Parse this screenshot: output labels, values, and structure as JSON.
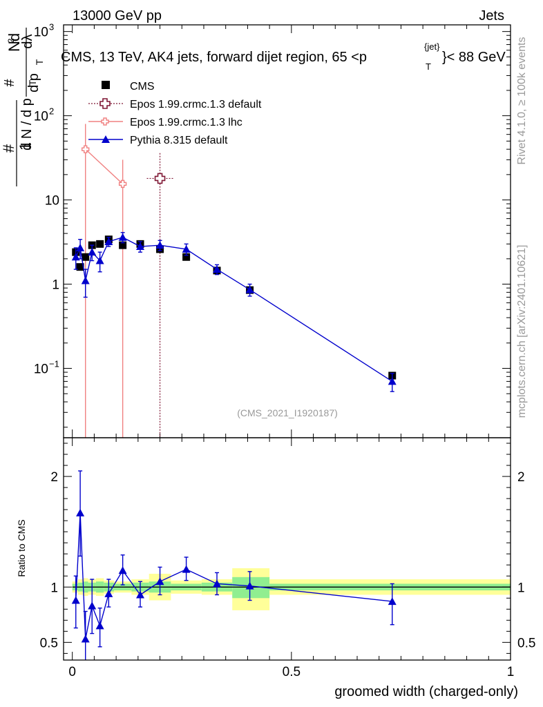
{
  "header": {
    "left": "13000 GeV pp",
    "right": "Jets"
  },
  "side_labels": {
    "rivet": "Rivet 4.1.0, ≥ 100k events",
    "mcplots": "mcplots.cern.ch [arXiv:2401.10621]"
  },
  "colors": {
    "cms": "#000000",
    "epos_default": "#7f1734",
    "epos_lhc": "#f08080",
    "pythia": "#0000cc",
    "band_outer": "#ffff99",
    "band_inner": "#90ee90"
  },
  "chart_data": [
    {
      "type": "scatter",
      "log_y": true,
      "title_parts": [
        "CMS, 13 TeV, AK4 jets, forward dijet region, 65 <p",
        "T",
        "{jet}",
        "}< 88 GeV"
      ],
      "ylabel_parts": [
        "1",
        "#",
        "d N / d p",
        "T",
        "#",
        "d p",
        "T",
        "d",
        "2",
        "N",
        "dλ"
      ],
      "xlim": [
        -0.02,
        1.0
      ],
      "ylim": [
        0.015,
        1200
      ],
      "yticks": [
        {
          "v": 0.1,
          "base": "10",
          "exp": "−1"
        },
        {
          "v": 1,
          "label": "1"
        },
        {
          "v": 10,
          "label": "10"
        },
        {
          "v": 100,
          "base": "10",
          "exp": "2"
        },
        {
          "v": 1000,
          "base": "10",
          "exp": "3"
        }
      ],
      "watermark": "(CMS_2021_I1920187)",
      "legend": [
        {
          "name": "CMS",
          "marker": "square"
        },
        {
          "name": "Epos 1.99.crmc.1.3 default",
          "marker": "open-cross"
        },
        {
          "name": "Epos 1.99.crmc.1.3 lhc",
          "marker": "cross-line"
        },
        {
          "name": "Pythia 8.315 default",
          "marker": "triangle"
        }
      ],
      "series": [
        {
          "name": "CMS",
          "x": [
            0.008,
            0.018,
            0.03,
            0.045,
            0.063,
            0.083,
            0.115,
            0.155,
            0.2,
            0.26,
            0.33,
            0.405,
            0.73
          ],
          "y": [
            2.4,
            1.6,
            2.1,
            2.9,
            3.0,
            3.4,
            2.9,
            3.0,
            2.6,
            2.1,
            1.45,
            0.85,
            0.082
          ]
        },
        {
          "name": "Epos 1.99.crmc.1.3 default",
          "x": [
            0.2
          ],
          "y": [
            18
          ],
          "xerr": [
            0.03
          ],
          "ylo": [
            0.015
          ],
          "yhi": [
            36
          ]
        },
        {
          "name": "Epos 1.99.crmc.1.3 lhc",
          "x": [
            0.03,
            0.115
          ],
          "y": [
            40,
            15.5
          ],
          "ylo": [
            0.015,
            0.015
          ],
          "yhi": [
            80,
            30
          ]
        },
        {
          "name": "Pythia 8.315 default",
          "x": [
            0.008,
            0.018,
            0.03,
            0.045,
            0.063,
            0.083,
            0.115,
            0.155,
            0.2,
            0.26,
            0.33,
            0.405,
            0.73
          ],
          "y": [
            2.1,
            2.7,
            1.1,
            2.4,
            1.9,
            3.2,
            3.6,
            2.8,
            2.9,
            2.6,
            1.5,
            0.86,
            0.07
          ],
          "ylo": [
            1.5,
            2.0,
            0.7,
            1.9,
            1.4,
            2.8,
            3.1,
            2.4,
            2.5,
            2.2,
            1.3,
            0.72,
            0.053
          ],
          "yhi": [
            2.7,
            3.4,
            1.5,
            2.9,
            2.4,
            3.6,
            4.1,
            3.2,
            3.3,
            3.0,
            1.7,
            1.0,
            0.087
          ]
        }
      ]
    },
    {
      "type": "scatter",
      "ylabel": "Ratio to CMS",
      "xlabel": "groomed width (charged-only)",
      "xlim": [
        -0.02,
        1.0
      ],
      "ylim": [
        0.34,
        2.35
      ],
      "xticks": [
        {
          "v": 0,
          "label": "0"
        },
        {
          "v": 0.5,
          "label": "0.5"
        },
        {
          "v": 1,
          "label": "1"
        }
      ],
      "yticks": [
        {
          "v": 0.5,
          "label": "0.5"
        },
        {
          "v": 1,
          "label": "1"
        },
        {
          "v": 2,
          "label": "2"
        }
      ],
      "reference_line": 1,
      "bands": [
        {
          "x0": 0.0,
          "x1": 0.013,
          "o": [
            0.95,
            1.05
          ],
          "i": [
            0.97,
            1.03
          ]
        },
        {
          "x0": 0.013,
          "x1": 0.024,
          "o": [
            0.93,
            1.07
          ],
          "i": [
            0.96,
            1.04
          ]
        },
        {
          "x0": 0.024,
          "x1": 0.036,
          "o": [
            0.92,
            1.08
          ],
          "i": [
            0.95,
            1.05
          ]
        },
        {
          "x0": 0.036,
          "x1": 0.054,
          "o": [
            0.93,
            1.07
          ],
          "i": [
            0.96,
            1.04
          ]
        },
        {
          "x0": 0.054,
          "x1": 0.072,
          "o": [
            0.92,
            1.08
          ],
          "i": [
            0.95,
            1.05
          ]
        },
        {
          "x0": 0.072,
          "x1": 0.095,
          "o": [
            0.94,
            1.06
          ],
          "i": [
            0.96,
            1.04
          ]
        },
        {
          "x0": 0.095,
          "x1": 0.135,
          "o": [
            0.95,
            1.05
          ],
          "i": [
            0.97,
            1.03
          ]
        },
        {
          "x0": 0.135,
          "x1": 0.175,
          "o": [
            0.93,
            1.07
          ],
          "i": [
            0.96,
            1.04
          ]
        },
        {
          "x0": 0.175,
          "x1": 0.225,
          "o": [
            0.88,
            1.12
          ],
          "i": [
            0.95,
            1.05
          ]
        },
        {
          "x0": 0.225,
          "x1": 0.295,
          "o": [
            0.94,
            1.06
          ],
          "i": [
            0.97,
            1.03
          ]
        },
        {
          "x0": 0.295,
          "x1": 0.365,
          "o": [
            0.93,
            1.07
          ],
          "i": [
            0.96,
            1.04
          ]
        },
        {
          "x0": 0.365,
          "x1": 0.45,
          "o": [
            0.79,
            1.17
          ],
          "i": [
            0.9,
            1.09
          ]
        },
        {
          "x0": 0.45,
          "x1": 1.0,
          "o": [
            0.93,
            1.07
          ],
          "i": [
            0.97,
            1.03
          ]
        }
      ],
      "series": [
        {
          "name": "Pythia 8.315 default",
          "x": [
            0.008,
            0.018,
            0.03,
            0.045,
            0.063,
            0.083,
            0.115,
            0.155,
            0.2,
            0.26,
            0.33,
            0.405,
            0.73
          ],
          "y": [
            0.88,
            1.67,
            0.53,
            0.83,
            0.65,
            0.94,
            1.15,
            0.93,
            1.05,
            1.16,
            1.03,
            1.01,
            0.87
          ],
          "ylo": [
            0.63,
            1.28,
            0.3,
            0.58,
            0.46,
            0.82,
            1.02,
            0.82,
            0.93,
            1.06,
            0.93,
            0.88,
            0.66
          ],
          "yhi": [
            1.1,
            2.05,
            0.78,
            1.07,
            0.81,
            1.07,
            1.29,
            1.05,
            1.18,
            1.27,
            1.13,
            1.14,
            1.03
          ]
        }
      ]
    }
  ]
}
